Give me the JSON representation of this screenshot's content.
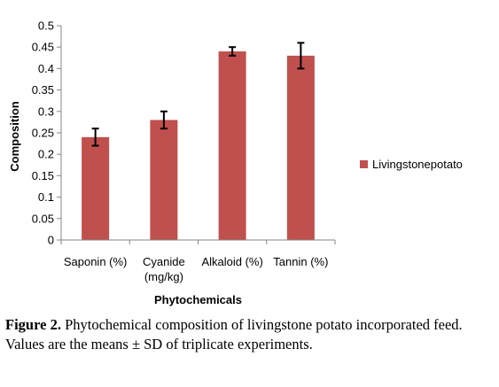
{
  "chart_data": {
    "type": "bar",
    "categories": [
      "Saponin (%)",
      "Cyanide (mg/kg)",
      "Alkaloid (%)",
      "Tannin (%)"
    ],
    "category_lines": [
      [
        "Saponin (%)"
      ],
      [
        "Cyanide",
        "(mg/kg)"
      ],
      [
        "Alkaloid (%)"
      ],
      [
        "Tannin (%)"
      ]
    ],
    "series": [
      {
        "name": "Livingstonepotato",
        "values": [
          0.24,
          0.28,
          0.44,
          0.43
        ],
        "errors": [
          0.02,
          0.02,
          0.01,
          0.03
        ],
        "color": "#c0504d"
      }
    ],
    "xlabel": "Phytochemicals",
    "ylabel": "Composition",
    "ylim": [
      0,
      0.5
    ],
    "yticks": [
      "0",
      "0.05",
      "0.1",
      "0.15",
      "0.2",
      "0.25",
      "0.3",
      "0.35",
      "0.4",
      "0.45",
      "0.5"
    ],
    "ytick_values": [
      0,
      0.05,
      0.1,
      0.15,
      0.2,
      0.25,
      0.3,
      0.35,
      0.4,
      0.45,
      0.5
    ],
    "grid": false,
    "legend_position": "right"
  },
  "caption": {
    "label": "Figure 2.",
    "text": " Phytochemical composition of livingstone potato incorporated feed. Values are the means ± SD of triplicate experiments."
  }
}
